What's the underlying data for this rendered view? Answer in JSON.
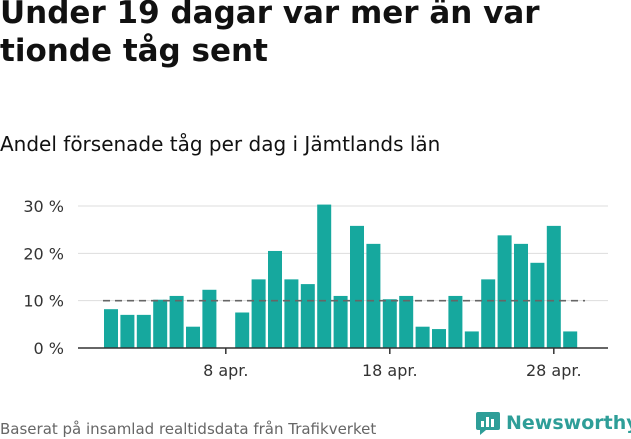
{
  "header": {
    "title": "Under 19 dagar var mer än var tionde tåg sent",
    "subtitle": "Andel försenade tåg per dag i Jämtlands län"
  },
  "footer": {
    "source": "Baserat på insamlad realtidsdata från Trafikverket",
    "logo_text": "Newsworthy",
    "logo_icon": "bar-chart-logo-icon"
  },
  "colors": {
    "bar": "#16a89e",
    "reference_line": "#666666",
    "grid": "#dddddd",
    "axis": "#333333",
    "logo": "#2e9e98"
  },
  "chart_data": {
    "type": "bar",
    "x": [
      "2020-04-01",
      "2020-04-02",
      "2020-04-03",
      "2020-04-04",
      "2020-04-05",
      "2020-04-06",
      "2020-04-07",
      "2020-04-08",
      "2020-04-09",
      "2020-04-10",
      "2020-04-11",
      "2020-04-12",
      "2020-04-13",
      "2020-04-14",
      "2020-04-15",
      "2020-04-16",
      "2020-04-17",
      "2020-04-18",
      "2020-04-19",
      "2020-04-20",
      "2020-04-21",
      "2020-04-22",
      "2020-04-23",
      "2020-04-24",
      "2020-04-25",
      "2020-04-26",
      "2020-04-27",
      "2020-04-28",
      "2020-04-29"
    ],
    "values": [
      8.2,
      7,
      7,
      10.2,
      11,
      4.5,
      12.3,
      0,
      7.5,
      14.5,
      20.5,
      14.5,
      13.5,
      30.3,
      11,
      25.8,
      22,
      10.3,
      11,
      4.5,
      4,
      11,
      3.5,
      14.5,
      23.8,
      22,
      18,
      25.8,
      3.5
    ],
    "unit": "%",
    "ylim": [
      0,
      30
    ],
    "yticks": [
      0,
      10,
      20,
      30
    ],
    "ytick_labels": [
      "0 %",
      "10 %",
      "20 %",
      "30 %"
    ],
    "xtick_positions": [
      "2020-04-08",
      "2020-04-18",
      "2020-04-28"
    ],
    "xtick_labels": [
      "8 apr.",
      "18 apr.",
      "28 apr."
    ],
    "reference_line": 10,
    "grid": true,
    "legend": false
  }
}
